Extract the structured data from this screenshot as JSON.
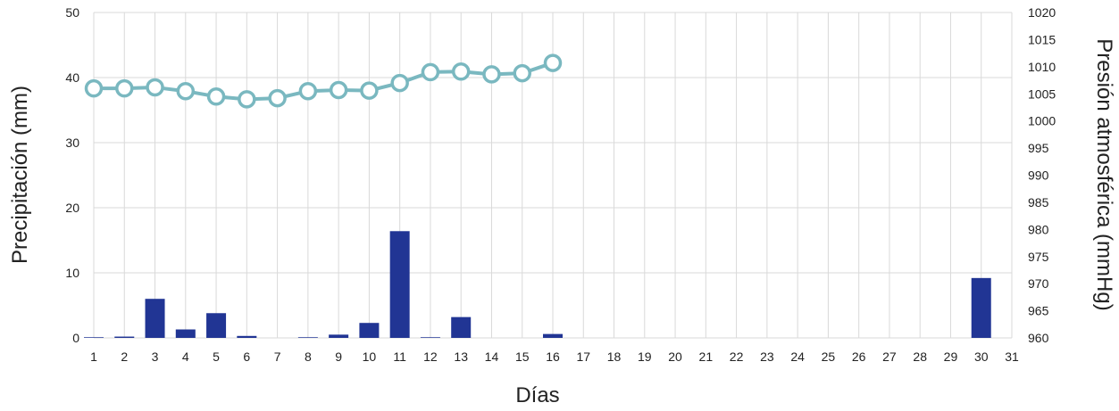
{
  "chart_data": {
    "type": "bar",
    "xlabel": "Días",
    "ylabel": "Precipitación (mm)",
    "ylabel_right": "Presión atmosférica (mmHg)",
    "categories": [
      "1",
      "2",
      "3",
      "4",
      "5",
      "6",
      "7",
      "8",
      "9",
      "10",
      "11",
      "12",
      "13",
      "14",
      "15",
      "16",
      "17",
      "18",
      "19",
      "20",
      "21",
      "22",
      "23",
      "24",
      "25",
      "26",
      "27",
      "28",
      "29",
      "30",
      "31"
    ],
    "ylim": [
      0,
      50
    ],
    "yticks": [
      0,
      10,
      20,
      30,
      40,
      50
    ],
    "ylim_right": [
      960,
      1020
    ],
    "yticks_right": [
      960,
      965,
      970,
      975,
      980,
      985,
      990,
      995,
      1000,
      1005,
      1010,
      1015,
      1020
    ],
    "grid": true,
    "series": [
      {
        "type": "bar",
        "axis": "left",
        "color": "#213594",
        "values": [
          0.1,
          0.2,
          6.0,
          1.3,
          3.8,
          0.3,
          0,
          0.1,
          0.5,
          2.3,
          16.4,
          0.1,
          3.2,
          0,
          0,
          0.6,
          0,
          0,
          0,
          0,
          0,
          0,
          0,
          0,
          0,
          0,
          0,
          0,
          0,
          9.2,
          0
        ]
      },
      {
        "type": "line",
        "axis": "right",
        "color": "#7ab8c0",
        "values": [
          1006.0,
          1006.0,
          1006.2,
          1005.5,
          1004.5,
          1004.0,
          1004.2,
          1005.5,
          1005.7,
          1005.6,
          1007.0,
          1009.0,
          1009.1,
          1008.6,
          1008.8,
          1010.7,
          null,
          null,
          null,
          null,
          null,
          null,
          null,
          null,
          null,
          null,
          null,
          null,
          null,
          null,
          null
        ]
      }
    ]
  }
}
